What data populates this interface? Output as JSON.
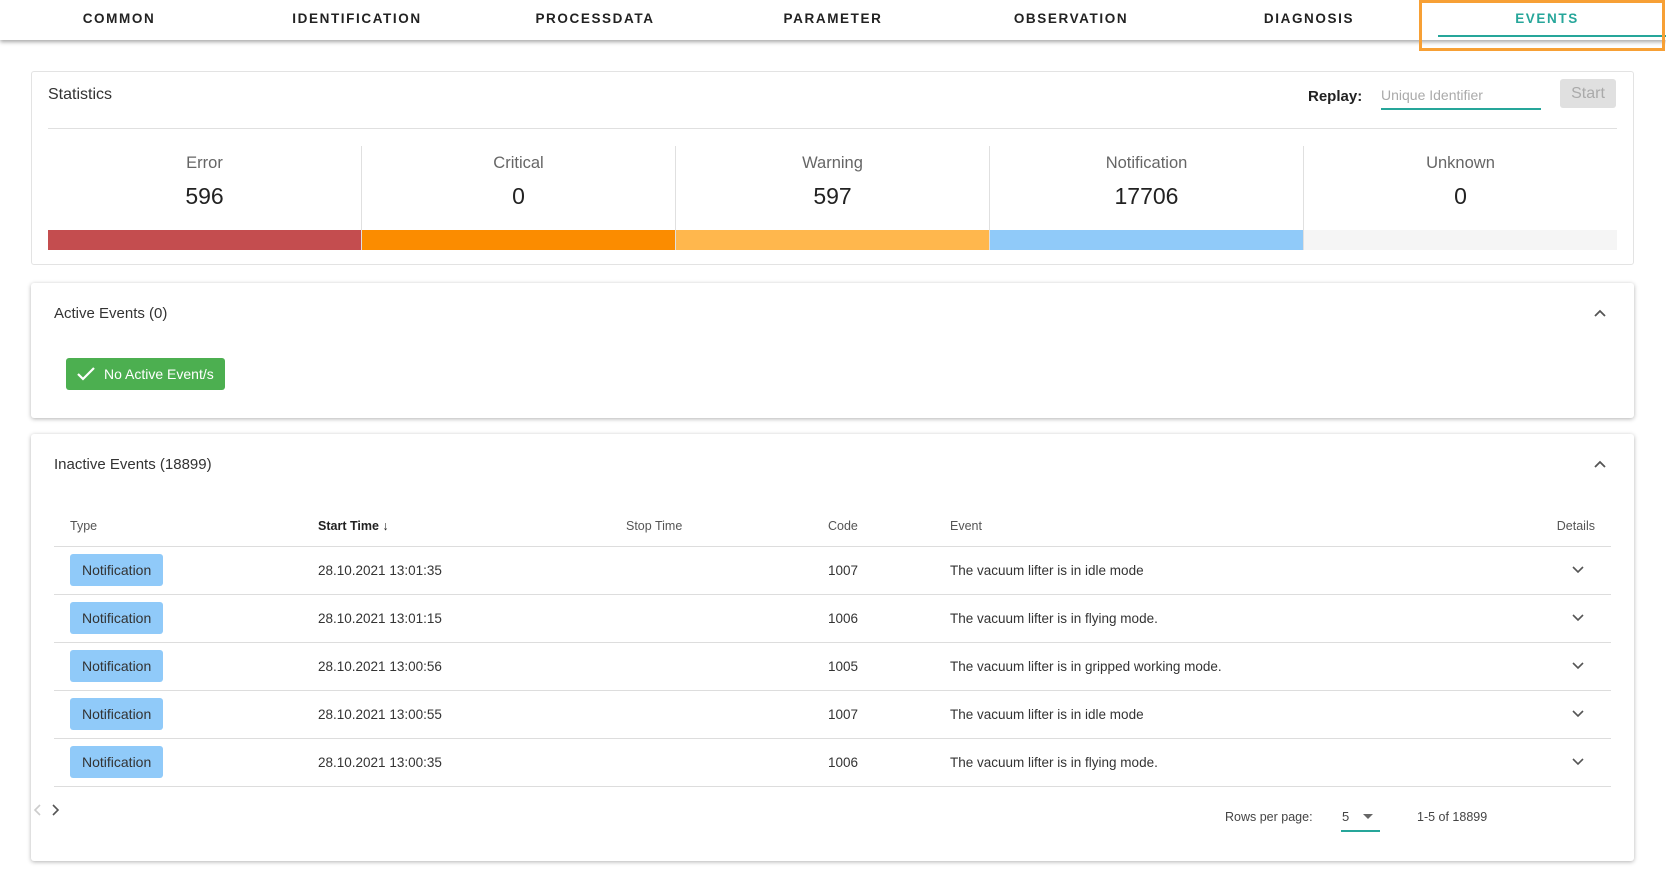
{
  "tabs": [
    {
      "label": "COMMON"
    },
    {
      "label": "IDENTIFICATION"
    },
    {
      "label": "PROCESSDATA"
    },
    {
      "label": "PARAMETER"
    },
    {
      "label": "OBSERVATION"
    },
    {
      "label": "DIAGNOSIS"
    },
    {
      "label": "EVENTS",
      "active": true
    }
  ],
  "statistics": {
    "title": "Statistics",
    "replay_label": "Replay:",
    "replay_placeholder": "Unique Identifier",
    "start_label": "Start",
    "items": [
      {
        "label": "Error",
        "value": "596",
        "color": "#c44d4f"
      },
      {
        "label": "Critical",
        "value": "0",
        "color": "#fb8c00"
      },
      {
        "label": "Warning",
        "value": "597",
        "color": "#ffb74d"
      },
      {
        "label": "Notification",
        "value": "17706",
        "color": "#90caf9"
      },
      {
        "label": "Unknown",
        "value": "0",
        "color": "#f5f5f5"
      }
    ]
  },
  "active_events": {
    "title": "Active Events (0)",
    "status_label": "No Active Event/s"
  },
  "inactive_events": {
    "title": "Inactive Events (18899)",
    "columns": [
      "Type",
      "Start Time",
      "Stop Time",
      "Code",
      "Event",
      "Details"
    ],
    "rows": [
      {
        "type": "Notification",
        "start": "28.10.2021 13:01:35",
        "stop": "",
        "code": "1007",
        "event": "The vacuum lifter is in idle mode"
      },
      {
        "type": "Notification",
        "start": "28.10.2021 13:01:15",
        "stop": "",
        "code": "1006",
        "event": "The vacuum lifter is in flying mode."
      },
      {
        "type": "Notification",
        "start": "28.10.2021 13:00:56",
        "stop": "",
        "code": "1005",
        "event": "The vacuum lifter is in gripped working mode."
      },
      {
        "type": "Notification",
        "start": "28.10.2021 13:00:55",
        "stop": "",
        "code": "1007",
        "event": "The vacuum lifter is in idle mode"
      },
      {
        "type": "Notification",
        "start": "28.10.2021 13:00:35",
        "stop": "",
        "code": "1006",
        "event": "The vacuum lifter is in flying mode."
      }
    ],
    "pagination": {
      "rows_per_page_label": "Rows per page:",
      "rows_per_page": "5",
      "range": "1-5 of 18899"
    }
  }
}
